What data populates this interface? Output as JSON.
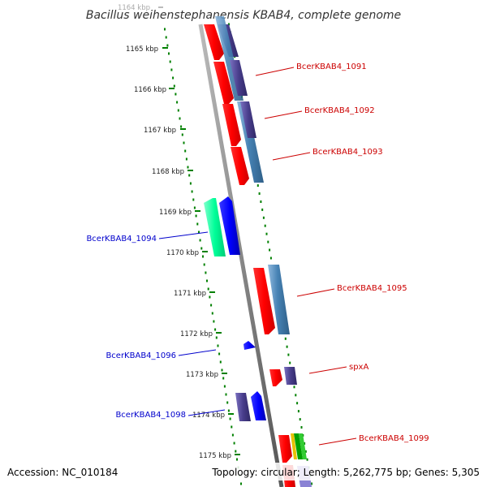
{
  "header": {
    "title": "Bacillus weihenstephanensis KBAB4, complete genome"
  },
  "footer": {
    "accession": "Accession: NC_010184",
    "summary": "Topology: circular; Length: 5,262,775 bp; Genes: 5,305"
  },
  "map": {
    "ticks": [
      {
        "label": "1164 kbp",
        "faded": true
      },
      {
        "label": "1165 kbp"
      },
      {
        "label": "1166 kbp"
      },
      {
        "label": "1167 kbp"
      },
      {
        "label": "1168 kbp"
      },
      {
        "label": "1169 kbp"
      },
      {
        "label": "1170 kbp"
      },
      {
        "label": "1171 kbp"
      },
      {
        "label": "1172 kbp"
      },
      {
        "label": "1173 kbp"
      },
      {
        "label": "1174 kbp"
      },
      {
        "label": "1175 kbp"
      }
    ],
    "genes": [
      {
        "name": "BcerKBAB4_1091",
        "strand": "forward",
        "color": "#cc0000"
      },
      {
        "name": "BcerKBAB4_1092",
        "strand": "forward",
        "color": "#cc0000"
      },
      {
        "name": "BcerKBAB4_1093",
        "strand": "forward",
        "color": "#cc0000"
      },
      {
        "name": "BcerKBAB4_1094",
        "strand": "reverse",
        "color": "#0000cc"
      },
      {
        "name": "BcerKBAB4_1095",
        "strand": "forward",
        "color": "#cc0000"
      },
      {
        "name": "BcerKBAB4_1096",
        "strand": "reverse",
        "color": "#0000cc"
      },
      {
        "name": "spxA",
        "strand": "forward",
        "color": "#cc0000"
      },
      {
        "name": "BcerKBAB4_1098",
        "strand": "reverse",
        "color": "#0000cc"
      },
      {
        "name": "BcerKBAB4_1099",
        "strand": "forward",
        "color": "#cc0000"
      }
    ],
    "feature_colors": {
      "cds_forward": "#ff0000",
      "cds_reverse": "#0000ff",
      "feature_blue": "#4682b4",
      "feature_purple": "#483d8b",
      "feature_green": "#00ff99",
      "gc_skew_green": "#008000",
      "backbone": "#808080"
    }
  }
}
